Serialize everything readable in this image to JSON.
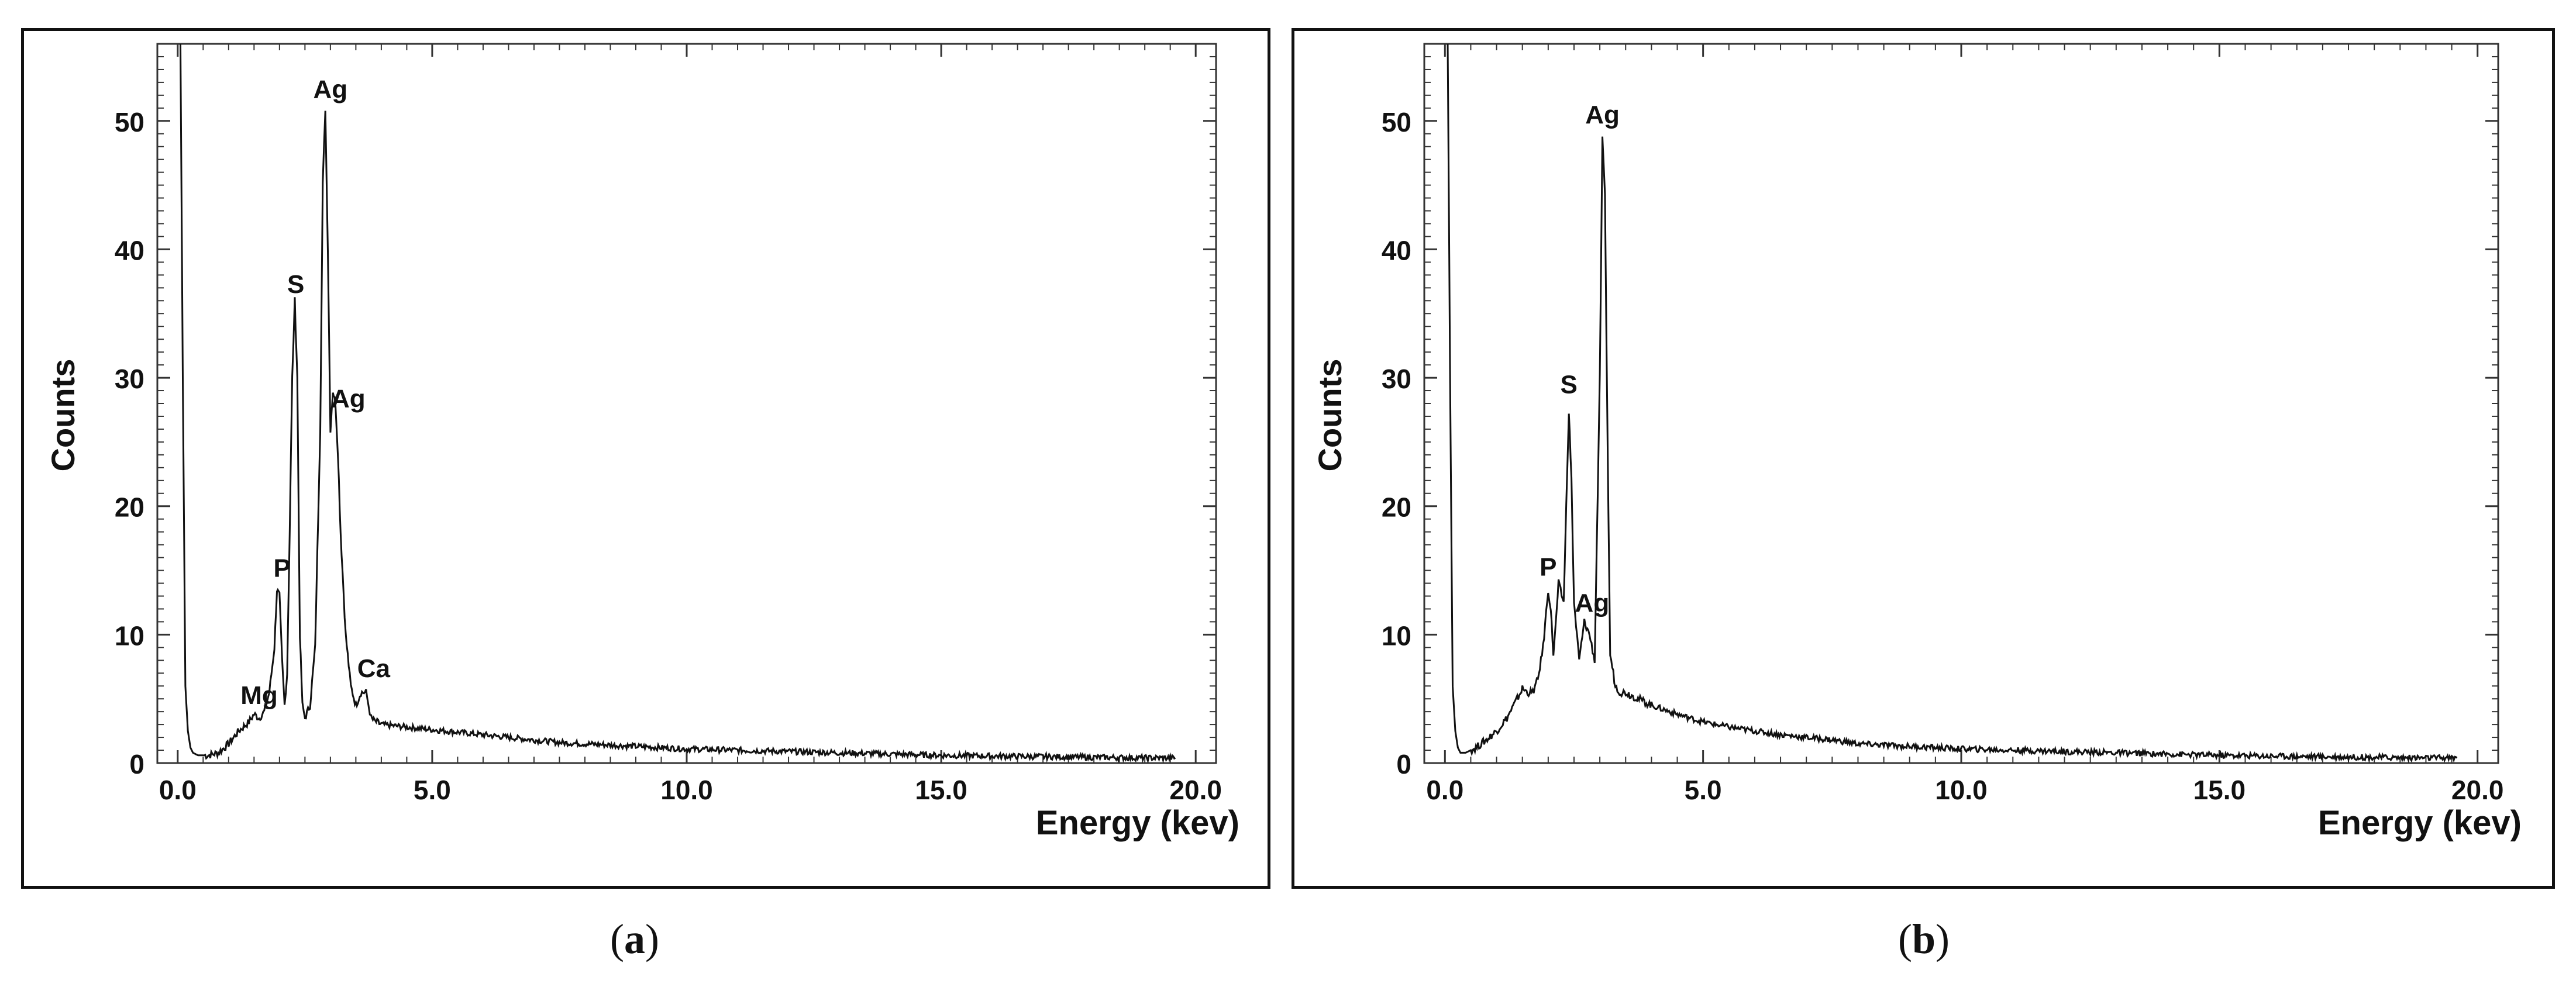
{
  "figure": {
    "captions": [
      "(a)",
      "(b)"
    ],
    "caption_letters": [
      "a",
      "b"
    ]
  },
  "chart_data": [
    {
      "id": "a",
      "type": "line",
      "title": "",
      "xlabel": "Energy (kev)",
      "ylabel": "Counts",
      "xlim": [
        -0.4,
        20.4
      ],
      "ylim": [
        0,
        56
      ],
      "xticks": [
        0.0,
        5.0,
        10.0,
        15.0,
        20.0
      ],
      "xtick_labels": [
        "0.0",
        "5.0",
        "10.0",
        "15.0",
        "20.0"
      ],
      "yticks": [
        0,
        10,
        20,
        30,
        40,
        50
      ],
      "ytick_labels": [
        "0",
        "10",
        "20",
        "30",
        "40",
        "50"
      ],
      "series_x": [
        0.0,
        0.05,
        0.1,
        0.15,
        0.2,
        0.25,
        0.3,
        0.4,
        0.6,
        0.8,
        1.0,
        1.2,
        1.4,
        1.5,
        1.6,
        1.7,
        1.8,
        1.9,
        1.95,
        2.0,
        2.05,
        2.1,
        2.15,
        2.2,
        2.25,
        2.3,
        2.35,
        2.4,
        2.45,
        2.5,
        2.6,
        2.7,
        2.8,
        2.85,
        2.9,
        2.95,
        3.0,
        3.05,
        3.1,
        3.15,
        3.2,
        3.3,
        3.4,
        3.5,
        3.6,
        3.7,
        3.75,
        3.8,
        3.85,
        3.9,
        4.0,
        4.5,
        5.0,
        5.5,
        6.0,
        6.5,
        7.0,
        7.5,
        8.0,
        9.0,
        10.0,
        11.0,
        12.0,
        13.0,
        14.0,
        15.0,
        16.0,
        17.0,
        18.0,
        19.0,
        19.6
      ],
      "series_y": [
        56,
        58,
        30,
        6,
        2.5,
        1.2,
        0.8,
        0.6,
        0.6,
        0.8,
        1.5,
        2.5,
        3.2,
        3.8,
        3.5,
        4.0,
        5.5,
        9.0,
        13.5,
        13.0,
        8.0,
        4.5,
        7.0,
        18.0,
        30.0,
        36.0,
        30.0,
        10.0,
        4.5,
        3.5,
        4.5,
        9.0,
        26.0,
        45.0,
        51.0,
        40.0,
        26.0,
        29.0,
        28.0,
        24.0,
        18.0,
        10.0,
        6.0,
        4.5,
        5.5,
        5.5,
        4.5,
        3.5,
        3.3,
        3.2,
        3.0,
        2.8,
        2.6,
        2.4,
        2.2,
        2.0,
        1.8,
        1.6,
        1.5,
        1.3,
        1.1,
        1.0,
        0.9,
        0.8,
        0.7,
        0.6,
        0.55,
        0.5,
        0.45,
        0.4,
        0.4
      ],
      "annotations": [
        {
          "text": "Ag",
          "x": 3.0,
          "y": 51.8
        },
        {
          "text": "S",
          "x": 2.32,
          "y": 36.6
        },
        {
          "text": "Ag",
          "x": 3.35,
          "y": 27.7
        },
        {
          "text": "P",
          "x": 2.05,
          "y": 14.5
        },
        {
          "text": "Mg",
          "x": 1.6,
          "y": 4.6
        },
        {
          "text": "Ca",
          "x": 3.85,
          "y": 6.7
        }
      ]
    },
    {
      "id": "b",
      "type": "line",
      "title": "",
      "xlabel": "Energy (kev)",
      "ylabel": "Counts",
      "xlim": [
        -0.4,
        20.4
      ],
      "ylim": [
        0,
        56
      ],
      "xticks": [
        0.0,
        5.0,
        10.0,
        15.0,
        20.0
      ],
      "xtick_labels": [
        "0.0",
        "5.0",
        "10.0",
        "15.0",
        "20.0"
      ],
      "yticks": [
        0,
        10,
        20,
        30,
        40,
        50
      ],
      "ytick_labels": [
        "0",
        "10",
        "20",
        "30",
        "40",
        "50"
      ],
      "series_x": [
        0.0,
        0.05,
        0.1,
        0.15,
        0.2,
        0.25,
        0.3,
        0.4,
        0.6,
        0.8,
        1.0,
        1.2,
        1.4,
        1.5,
        1.6,
        1.7,
        1.8,
        1.9,
        2.0,
        2.05,
        2.1,
        2.15,
        2.2,
        2.3,
        2.35,
        2.4,
        2.45,
        2.5,
        2.6,
        2.7,
        2.8,
        2.9,
        3.0,
        3.05,
        3.1,
        3.15,
        3.2,
        3.3,
        3.4,
        3.5,
        4.0,
        4.5,
        5.0,
        5.5,
        6.0,
        6.5,
        7.0,
        7.5,
        8.0,
        9.0,
        10.0,
        11.0,
        12.0,
        13.0,
        14.0,
        15.0,
        16.0,
        17.0,
        18.0,
        19.0,
        19.6
      ],
      "series_y": [
        56,
        58,
        30,
        6,
        2.5,
        1.2,
        0.8,
        0.8,
        1.2,
        1.8,
        2.5,
        3.5,
        5.0,
        5.8,
        5.5,
        5.5,
        6.5,
        9.0,
        13.5,
        12.0,
        8.5,
        11.0,
        14.0,
        12.5,
        20.0,
        27.5,
        22.0,
        12.5,
        8.0,
        11.0,
        10.0,
        8.0,
        30.0,
        48.5,
        44.0,
        25.0,
        8.5,
        6.0,
        5.5,
        5.5,
        4.5,
        3.8,
        3.2,
        2.8,
        2.5,
        2.2,
        2.0,
        1.8,
        1.5,
        1.3,
        1.1,
        1.0,
        0.9,
        0.8,
        0.7,
        0.6,
        0.55,
        0.5,
        0.45,
        0.4,
        0.4
      ],
      "annotations": [
        {
          "text": "Ag",
          "x": 3.05,
          "y": 49.8
        },
        {
          "text": "S",
          "x": 2.4,
          "y": 28.8
        },
        {
          "text": "P",
          "x": 2.0,
          "y": 14.6
        },
        {
          "text": "Ag",
          "x": 2.85,
          "y": 11.8
        }
      ]
    }
  ]
}
